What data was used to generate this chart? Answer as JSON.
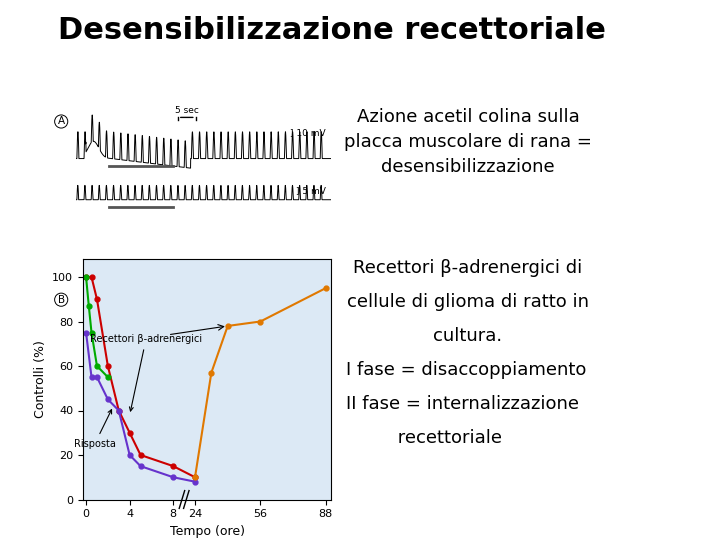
{
  "title": "Desensibilizzazione recettoriale",
  "title_fontsize": 22,
  "title_fontweight": "bold",
  "bg_color": "#ffffff",
  "panel_A_label": "A",
  "panel_B_label": "B",
  "text_right_top": "Azione acetil colina sulla\nplacca muscolare di rana =\ndesensibilizzazione",
  "text_right_bottom_line1": "Recettori β-adrenergici di",
  "text_right_bottom_line2": "cellule di glioma di ratto in",
  "text_right_bottom_line3": "cultura.",
  "text_right_bottom_line4": "I fase = disaccoppiamento",
  "text_right_bottom_line5": "II fase = internalizzazione",
  "text_right_bottom_line6": "         recettoriale",
  "plot_bg_color": "#dce9f5",
  "xlabel": "Tempo (ore)",
  "ylabel": "Controlli (%)",
  "red_x": [
    0,
    0.5,
    1,
    2,
    3,
    4,
    5,
    8,
    24
  ],
  "red_y": [
    100,
    100,
    90,
    60,
    40,
    30,
    20,
    15,
    10
  ],
  "green_x": [
    0,
    0.25,
    0.5,
    1,
    2
  ],
  "green_y": [
    100,
    87,
    75,
    60,
    55
  ],
  "purple_x": [
    0,
    0.5,
    1,
    2,
    3,
    4,
    5,
    8,
    24
  ],
  "purple_y": [
    75,
    55,
    55,
    45,
    40,
    20,
    15,
    10,
    8
  ],
  "orange_x": [
    24,
    32,
    40,
    56,
    88
  ],
  "orange_y": [
    10,
    57,
    78,
    80,
    95
  ],
  "red_color": "#cc0000",
  "green_color": "#00aa00",
  "purple_color": "#6633cc",
  "orange_color": "#e07800",
  "label_recettori": "Recettori β-adrenergici",
  "label_risposta": "Risposta",
  "ytick_labels": [
    "0",
    "20",
    "40",
    "60",
    "80",
    "100"
  ],
  "ytick_pos": [
    0,
    20,
    40,
    60,
    80,
    100
  ],
  "text_fontsize": 13,
  "axis_fontsize": 8
}
